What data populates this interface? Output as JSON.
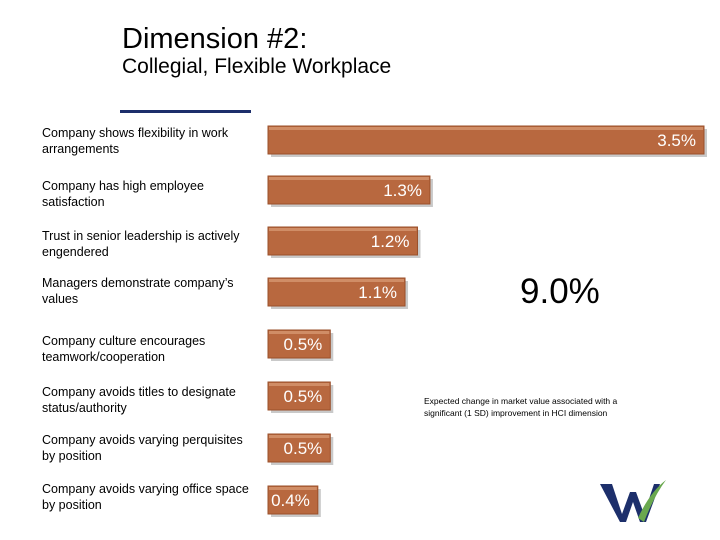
{
  "header": {
    "title": "Dimension #2:",
    "subtitle": "Collegial, Flexible Workplace"
  },
  "chart_data": {
    "type": "bar",
    "orientation": "horizontal",
    "categories": [
      "Company shows flexibility in work arrangements",
      "Company has high employee satisfaction",
      "Trust in senior leadership is actively engendered",
      "Managers demonstrate company’s values",
      "Company culture encourages teamwork/cooperation",
      "Company avoids titles to designate status/authority",
      "Company avoids varying perquisites by position",
      "Company avoids varying office space by position"
    ],
    "values": [
      3.5,
      1.3,
      1.2,
      1.1,
      0.5,
      0.5,
      0.5,
      0.4
    ],
    "value_labels": [
      "3.5%",
      "1.3%",
      "1.2%",
      "1.1%",
      "0.5%",
      "0.5%",
      "0.5%",
      "0.4%"
    ],
    "total_label": "9.0%",
    "note": "Expected change in market value associated with a significant (1 SD) improvement in HCI dimension",
    "bar_color": "#b8683f",
    "bar_border_color": "#9a4f2a"
  }
}
